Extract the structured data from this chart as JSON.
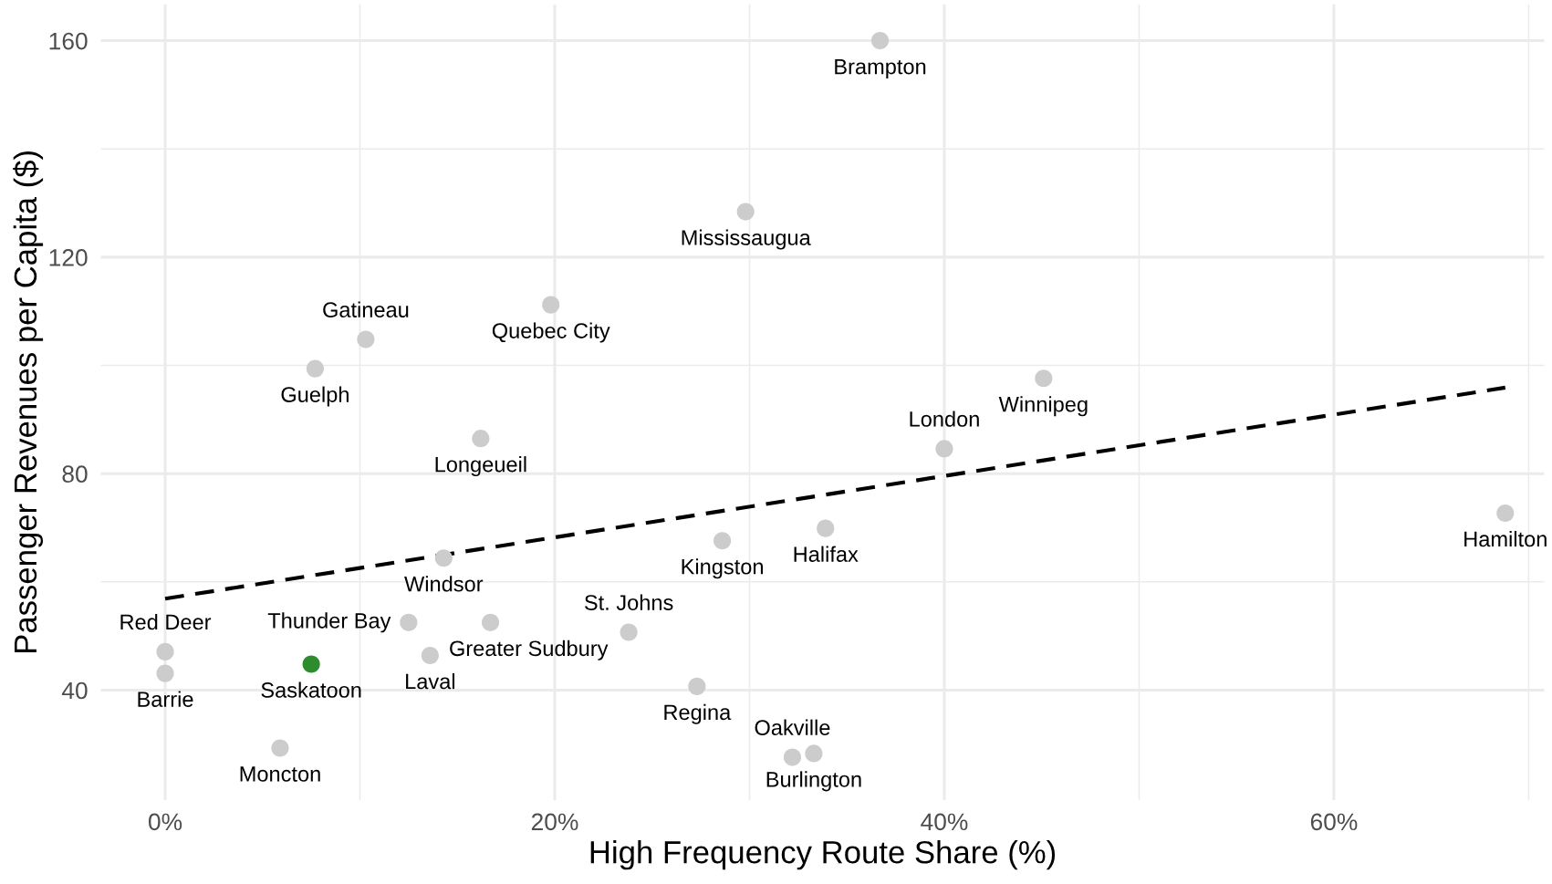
{
  "chart_data": {
    "type": "scatter",
    "xlabel": "High Frequency Route Share (%)",
    "ylabel": "Passenger Revenues per Capita ($)",
    "series": [
      {
        "x": [
          36.7,
          29.8,
          19.8,
          10.3,
          7.7,
          16.2,
          45.1,
          40.0,
          68.8,
          33.9,
          28.6,
          14.3,
          12.5,
          16.7,
          23.8,
          13.6,
          0,
          0,
          7.5,
          27.3,
          33.3,
          32.2,
          5.9
        ],
        "values": [
          160,
          128.4,
          111.2,
          104.8,
          99.4,
          86.5,
          97.6,
          84.6,
          72.7,
          69.9,
          67.6,
          64.4,
          52.5,
          52.5,
          50.7,
          46.4,
          47.1,
          43.1,
          44.8,
          40.7,
          28.3,
          27.6,
          29.3
        ],
        "colors": [
          "#cccccc",
          "#cccccc",
          "#cccccc",
          "#cccccc",
          "#cccccc",
          "#cccccc",
          "#cccccc",
          "#cccccc",
          "#cccccc",
          "#cccccc",
          "#cccccc",
          "#cccccc",
          "#cccccc",
          "#cccccc",
          "#cccccc",
          "#cccccc",
          "#cccccc",
          "#cccccc",
          "#2e8b2e",
          "#cccccc",
          "#cccccc",
          "#cccccc",
          "#cccccc"
        ],
        "marker": "circle"
      },
      {
        "type": "line",
        "x": [
          0,
          68.8
        ],
        "values": [
          56.9,
          95.9
        ],
        "color": "#000000",
        "line_style": "dashed"
      }
    ],
    "annotations": [
      {
        "text": "Brampton",
        "x": 36.7,
        "y": 160
      },
      {
        "text": "Mississaugua",
        "x": 29.8,
        "y": 128.4
      },
      {
        "text": "Quebec City",
        "x": 19.8,
        "y": 111.2
      },
      {
        "text": "Gatineau",
        "x": 10.3,
        "y": 104.8
      },
      {
        "text": "Guelph",
        "x": 7.7,
        "y": 99.4
      },
      {
        "text": "Longeueil",
        "x": 16.2,
        "y": 86.5
      },
      {
        "text": "Winnipeg",
        "x": 45.1,
        "y": 97.6
      },
      {
        "text": "London",
        "x": 40.0,
        "y": 84.6
      },
      {
        "text": "Hamilton",
        "x": 68.8,
        "y": 72.7
      },
      {
        "text": "Halifax",
        "x": 33.9,
        "y": 69.9
      },
      {
        "text": "Kingston",
        "x": 28.6,
        "y": 67.6
      },
      {
        "text": "Windsor",
        "x": 14.3,
        "y": 64.4
      },
      {
        "text": "Thunder Bay",
        "x": 12.5,
        "y": 52.5
      },
      {
        "text": "Greater Sudbury",
        "x": 16.7,
        "y": 52.5
      },
      {
        "text": "St. Johns",
        "x": 23.8,
        "y": 50.7
      },
      {
        "text": "Laval",
        "x": 13.6,
        "y": 46.4
      },
      {
        "text": "Red Deer",
        "x": 0,
        "y": 47.1
      },
      {
        "text": "Barrie",
        "x": 0,
        "y": 43.1
      },
      {
        "text": "Saskatoon",
        "x": 7.5,
        "y": 44.8
      },
      {
        "text": "Regina",
        "x": 27.3,
        "y": 40.7
      },
      {
        "text": "Burlington",
        "x": 33.3,
        "y": 28.3
      },
      {
        "text": "Oakville",
        "x": 32.2,
        "y": 27.6
      },
      {
        "text": "Moncton",
        "x": 5.9,
        "y": 29.3
      }
    ],
    "xlim": [
      -3.3,
      70.8
    ],
    "ylim": [
      19.7,
      166.7
    ],
    "xticks": [
      {
        "value": 0,
        "label": "0%"
      },
      {
        "value": 10,
        "label": null
      },
      {
        "value": 20,
        "label": "20%"
      },
      {
        "value": 30,
        "label": null
      },
      {
        "value": 40,
        "label": "40%"
      },
      {
        "value": 50,
        "label": null
      },
      {
        "value": 60,
        "label": "60%"
      },
      {
        "value": 70,
        "label": null
      }
    ],
    "yticks": [
      40,
      {
        "value": 60,
        "label": null
      },
      80,
      {
        "value": 100,
        "label": null
      },
      120,
      {
        "value": 140,
        "label": null
      },
      160
    ],
    "grid": true
  }
}
